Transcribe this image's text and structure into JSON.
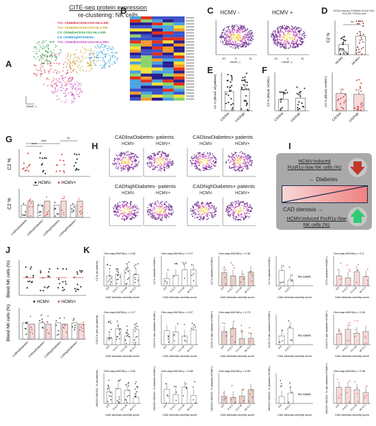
{
  "panels": [
    "A",
    "B",
    "C",
    "D",
    "E",
    "F",
    "G",
    "H",
    "I",
    "J",
    "K"
  ],
  "panelA": {
    "title_line1": "CITE-seq protein expression",
    "title_line2": "re-clustering: NK cells",
    "clusters": [
      {
        "label": "*C1: CD56dimCD16+CD2+HLA-DR-",
        "color": "#d7263d"
      },
      {
        "label": "*C2: CD56dimCD16+CD2-HLA-DR-",
        "color": "#c9a227"
      },
      {
        "label": "C3: CD56dimCD16-CD2-HLA-DR-",
        "color": "#2e9e4a"
      },
      {
        "label": "C4: CD56brightCD16dim",
        "color": "#1f8fd6"
      },
      {
        "label": "*C5: CD56dimCD16+CD2-HLA-DR+",
        "color": "#c43bbd"
      }
    ],
    "xlabel": "UMAP_1",
    "ylabel": "UMAP_2"
  },
  "panelC": {
    "left_title": "HCMV -",
    "right_title": "HCMV +",
    "xlabel": "UMAP_1",
    "ylabel": "UMAP_2",
    "ticks": [
      "-10",
      "0",
      "10"
    ]
  },
  "panelD": {
    "header": "HCMV-induced CD56dim CD16+CD2-HLA-DR- FcεR1γ-/low",
    "ylabel": "C2 %",
    "groups": [
      "HCMV-",
      "HCMV+"
    ],
    "sig": "**"
  },
  "panelE": {
    "ylabel": "C2 % (Blood, all patients)",
    "groups": [
      "CADlow",
      "CADhigh"
    ]
  },
  "panelF": {
    "ylabel1": "C2 % (Blood, HCMV-)",
    "ylabel2": "C2 % (Blood, HCMV+)",
    "groups": [
      "CADlow",
      "CADhigh"
    ]
  },
  "panelG": {
    "ylabel": "C2 %",
    "legend": [
      "HCMV-",
      "HCMV+"
    ],
    "sig": [
      "****",
      "****",
      "**",
      "****"
    ],
    "groups": [
      "CADlowDiabetes-",
      "CADlowDiabetes+",
      "CADhighDiabetes-",
      "CADhighDiabetes+"
    ]
  },
  "panelH": {
    "groups": [
      {
        "title": "CADlowDiabetes- patients",
        "left": "HCMV-",
        "right": "HCMV+"
      },
      {
        "title": "CADlowDiabetes+ patients",
        "left": "HCMV-",
        "right": "HCMV+"
      },
      {
        "title": "CADhighDiabetes- patients",
        "left": "HCMV-",
        "right": "HCMV+"
      },
      {
        "title": "CADhighDiabetes+ patients",
        "left": "HCMV-",
        "right": "HCMV+"
      }
    ]
  },
  "panelI": {
    "top_text": "HCMV-induced FcεR1γ-/low NK cells (%)",
    "diabetes": "← Diabetes",
    "stenosis": "CAD stenosis →",
    "bottom_text": "HCMV-induced FcεR1γ-/low NK cells (%)",
    "down_color": "#c0392b",
    "up_color": "#2ecc71"
  },
  "panelJ": {
    "ylabel_top": "Blood NK cells (%)",
    "ylabel_bottom": "Blood NK cells (%)",
    "legend": [
      "HCMV-",
      "HCMV+"
    ],
    "groups": [
      "CADlowDiabetes-",
      "CADlowDiabetes+",
      "CADhighDiabetes-",
      "CADhighDiabetes+"
    ]
  },
  "panelK": {
    "xlabel": "CAD stenosis severity score",
    "xticks": [
      "0-8",
      "8-21.5",
      "21.5-48",
      "48-71.5"
    ],
    "rows": [
      [
        {
          "anova": "One-way ANOVA  p = 0.60",
          "ylabel": "C2 % (all patients)"
        },
        {
          "anova": "One-way ANOVA  p = 0.27",
          "ylabel": "C2 % (diabetes-/HCMV-)"
        },
        {
          "anova": "One-way ANOVA  p = 0.36",
          "ylabel": "C2 % (diabetes-/HCMV+)"
        },
        {
          "anova": "",
          "ylabel": "C2 % (diabetes+/HCMV-)",
          "note": "No cases"
        },
        {
          "anova": "One-way ANOVA  p = 0.3",
          "ylabel": "C2 % (diabetes+/HCMV+)"
        }
      ],
      [
        {
          "anova": "One-way ANOVA  p = 0.17",
          "ylabel": "C1/C2 % ratio (all patients)"
        },
        {
          "anova": "One-way ANOVA  p = 0.37",
          "ylabel": "C1/C2 % ratio (diabetes-/HCMV-)"
        },
        {
          "anova": "One-way ANOVA  p = 0.73",
          "ylabel": "C1/C2 % ratio (diabetes-/HCMV+)"
        },
        {
          "anova": "",
          "ylabel": "C1/C2 % ratio (diabetes+/HCMV-)",
          "note": "No cases"
        },
        {
          "anova": "One-way ANOVA  p = 0.34",
          "ylabel": "C1/C2 % ratio (diabetes+/HCMV+)"
        }
      ],
      [
        {
          "anova": "One-way ANOVA  p = 0.62",
          "ylabel": "NKG2C+/NKG2C- % (all patients)"
        },
        {
          "anova": "One-way ANOVA  p = 0.68",
          "ylabel": "NKG2C+/NKG2C- % (diabetes-/HCMV-)"
        },
        {
          "anova": "One-way ANOVA  p = 0.69",
          "ylabel": "NKG2C+/NKG2C- % (diabetes-/HCMV+)"
        },
        {
          "anova": "",
          "ylabel": "NKG2C+/NKG2C- % (diabetes+/HCMV-)",
          "note": "No cases"
        },
        {
          "anova": "One-way ANOVA  p = 0.06",
          "ylabel": "NKG2C+/NKG2C- % ratio (diabetes+/HCMV+)"
        }
      ]
    ]
  },
  "colors": {
    "grey_bar": "#8c8c8c",
    "red_point": "#d9534f",
    "pink_bar": "#f3c6c6",
    "brown_point": "#a0522d"
  }
}
